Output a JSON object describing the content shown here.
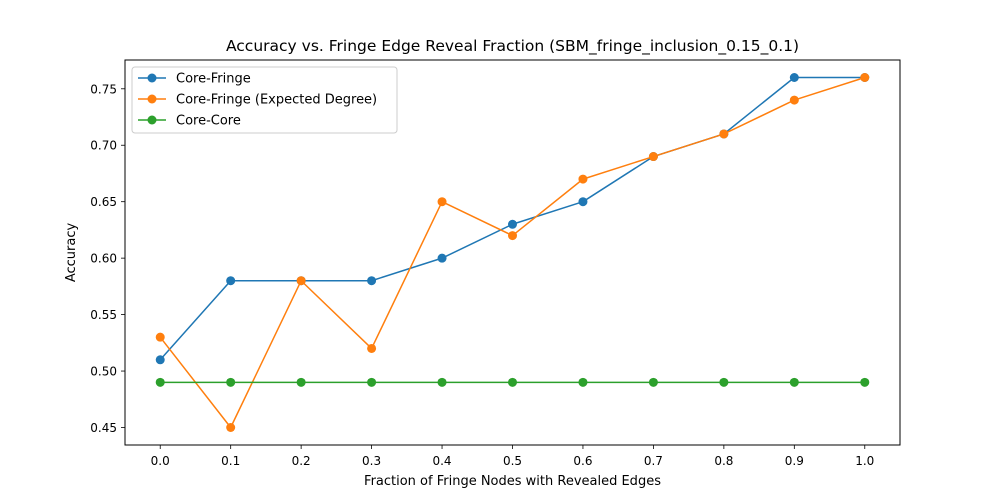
{
  "chart_data": {
    "type": "line",
    "title": "Accuracy vs. Fringe Edge Reveal Fraction (SBM_fringe_inclusion_0.15_0.1)",
    "xlabel": "Fraction of Fringe Nodes with Revealed Edges",
    "ylabel": "Accuracy",
    "x": [
      0.0,
      0.1,
      0.2,
      0.3,
      0.4,
      0.5,
      0.6,
      0.7,
      0.8,
      0.9,
      1.0
    ],
    "x_tick_labels": [
      "0.0",
      "0.1",
      "0.2",
      "0.3",
      "0.4",
      "0.5",
      "0.6",
      "0.7",
      "0.8",
      "0.9",
      "1.0"
    ],
    "y_ticks": [
      0.45,
      0.5,
      0.55,
      0.6,
      0.65,
      0.7,
      0.75
    ],
    "y_tick_labels": [
      "0.45",
      "0.50",
      "0.55",
      "0.60",
      "0.65",
      "0.70",
      "0.75"
    ],
    "xlim": [
      -0.05,
      1.05
    ],
    "ylim": [
      0.4345,
      0.7755
    ],
    "grid": false,
    "legend_position": "upper-left",
    "series": [
      {
        "name": "Core-Fringe",
        "color": "#1f77b4",
        "marker": "circle",
        "values": [
          0.51,
          0.58,
          0.58,
          0.58,
          0.6,
          0.63,
          0.65,
          0.69,
          0.71,
          0.76,
          0.76
        ]
      },
      {
        "name": "Core-Fringe (Expected Degree)",
        "color": "#ff7f0e",
        "marker": "circle",
        "values": [
          0.53,
          0.45,
          0.58,
          0.52,
          0.65,
          0.62,
          0.67,
          0.69,
          0.71,
          0.74,
          0.76
        ]
      },
      {
        "name": "Core-Core",
        "color": "#2ca02c",
        "marker": "circle",
        "values": [
          0.49,
          0.49,
          0.49,
          0.49,
          0.49,
          0.49,
          0.49,
          0.49,
          0.49,
          0.49,
          0.49
        ]
      }
    ]
  }
}
